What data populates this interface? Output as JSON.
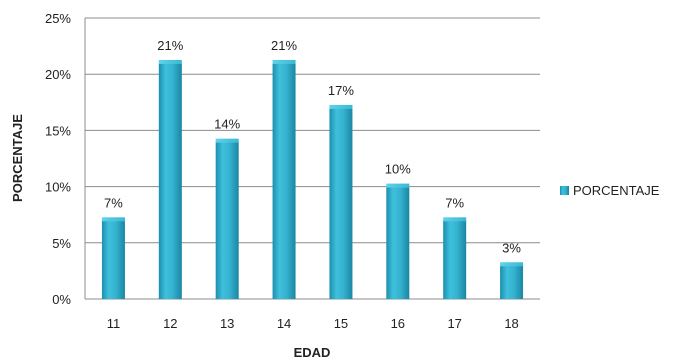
{
  "chart_data": {
    "type": "bar",
    "categories": [
      "11",
      "12",
      "13",
      "14",
      "15",
      "16",
      "17",
      "18"
    ],
    "series": [
      {
        "name": "PORCENTAJE",
        "values": [
          7,
          21,
          14,
          21,
          17,
          10,
          7,
          3
        ],
        "data_labels": [
          "7%",
          "21%",
          "14%",
          "21%",
          "17%",
          "10%",
          "7%",
          "3%"
        ],
        "color": "#2aa6c4"
      }
    ],
    "xlabel": "EDAD",
    "ylabel": "PORCENTAJE",
    "ylim": [
      0,
      25
    ],
    "yticks": [
      0,
      5,
      10,
      15,
      20,
      25
    ],
    "ytick_labels": [
      "0%",
      "5%",
      "10%",
      "15%",
      "20%",
      "25%"
    ],
    "grid": true,
    "legend_position": "right"
  }
}
